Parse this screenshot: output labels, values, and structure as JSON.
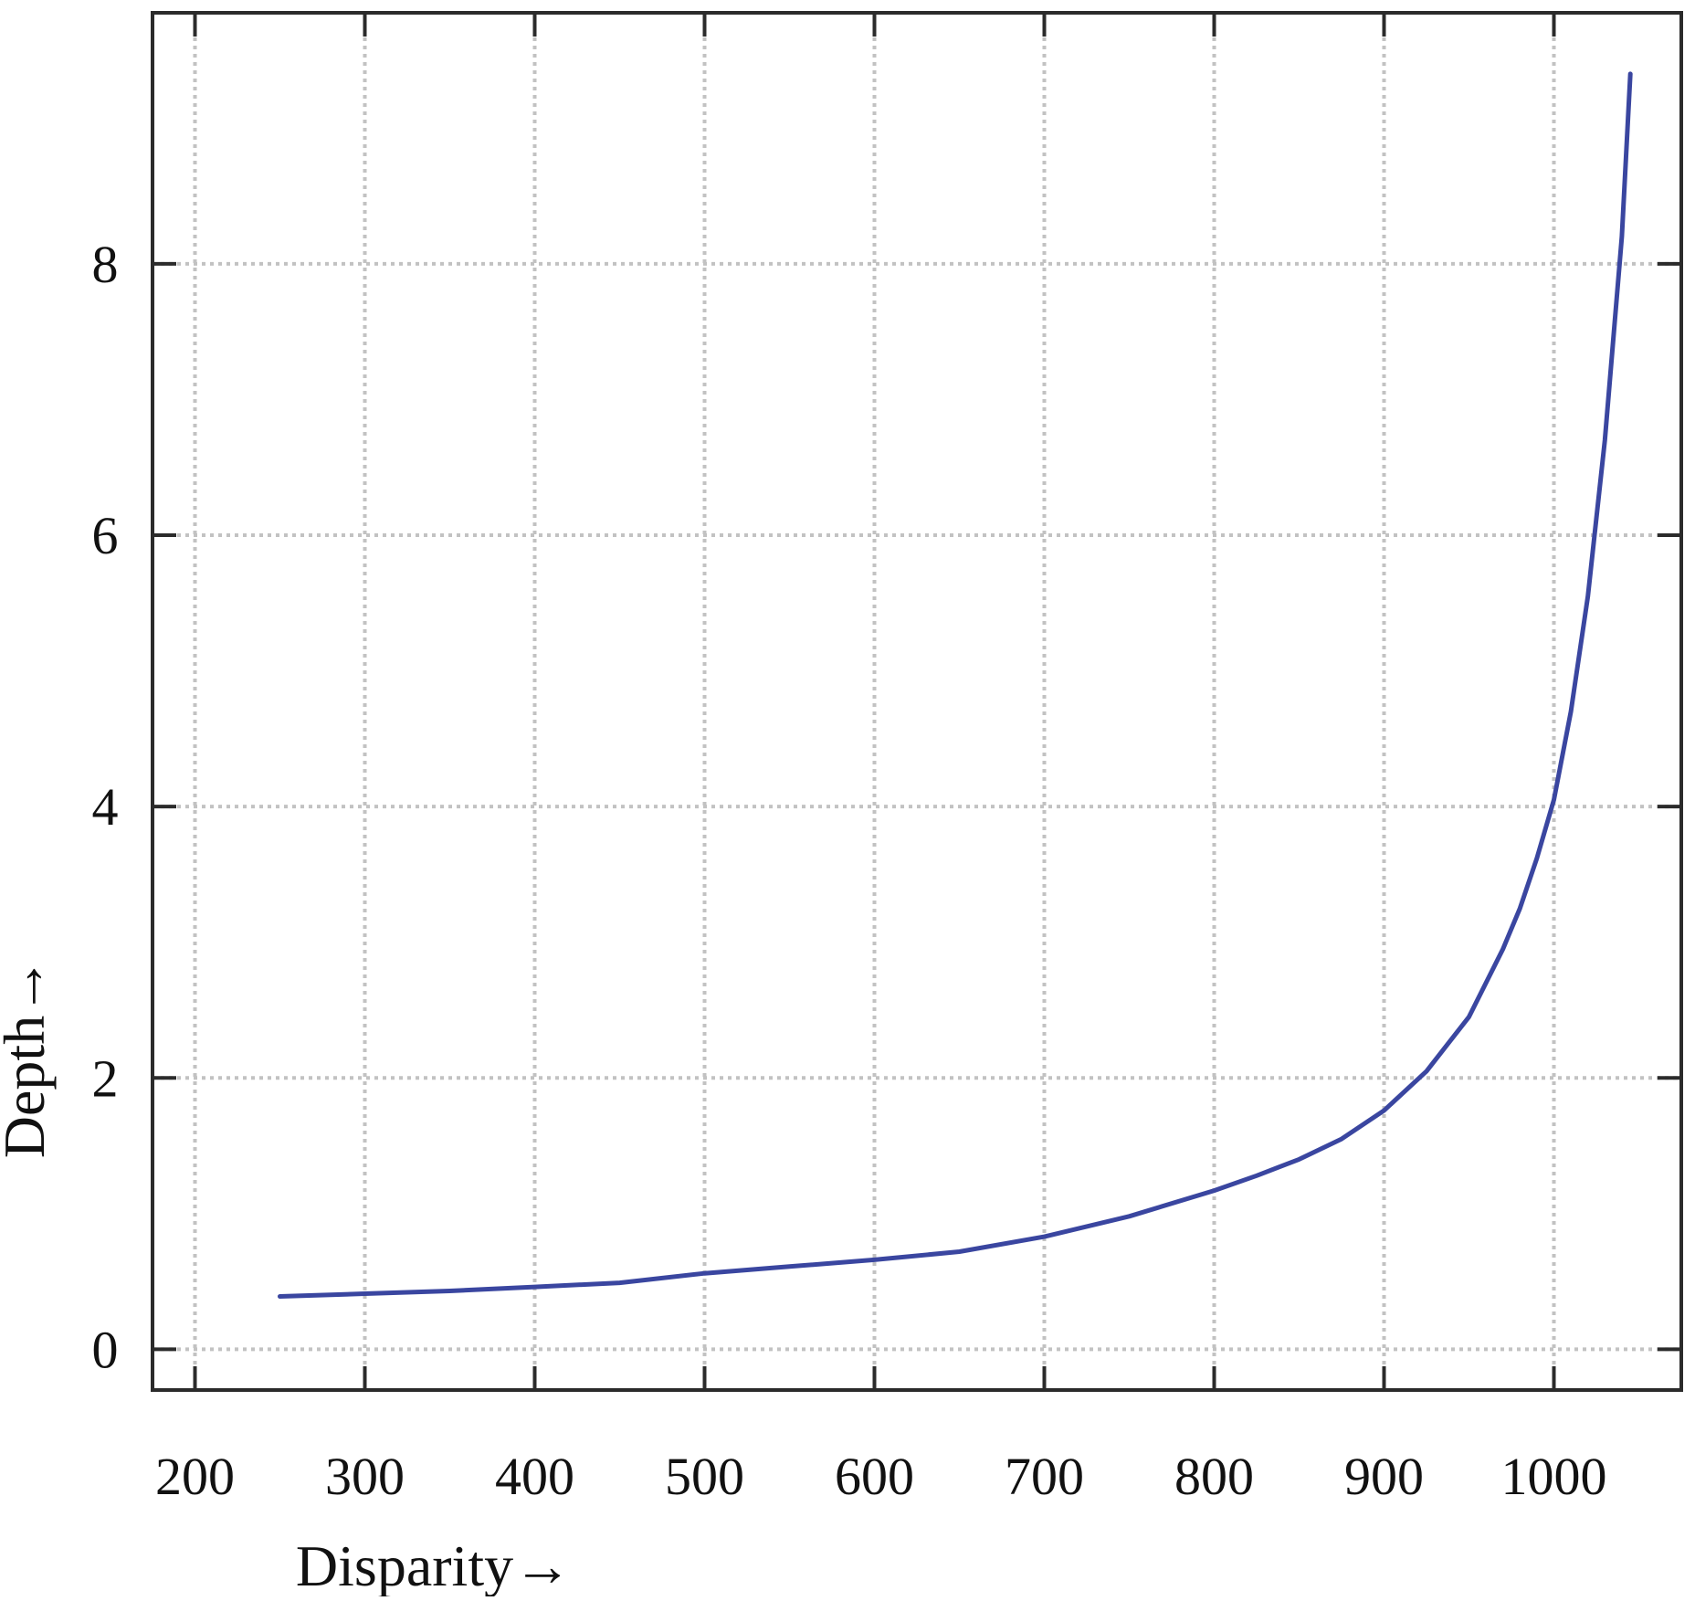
{
  "colors": {
    "line": "#3a46a0",
    "axis": "#2b2b2b",
    "grid": "#c2c2c2"
  },
  "chart_data": {
    "type": "line",
    "title": "",
    "xlabel": "Disparity→",
    "ylabel": "Depth→",
    "xlim": [
      175,
      1075
    ],
    "ylim": [
      -0.3,
      9.85
    ],
    "xticks": [
      200,
      300,
      400,
      500,
      600,
      700,
      800,
      900,
      1000
    ],
    "yticks": [
      0,
      2,
      4,
      6,
      8
    ],
    "grid": true,
    "legend": "none",
    "series": [
      {
        "x": [
          250,
          300,
          350,
          400,
          450,
          500,
          550,
          600,
          650,
          700,
          750,
          800,
          825,
          850,
          875,
          900,
          925,
          950,
          960,
          970,
          980,
          990,
          1000,
          1010,
          1020,
          1030,
          1040,
          1045
        ],
        "y": [
          0.39,
          0.41,
          0.43,
          0.46,
          0.49,
          0.56,
          0.61,
          0.66,
          0.72,
          0.83,
          0.98,
          1.17,
          1.28,
          1.4,
          1.55,
          1.76,
          2.05,
          2.45,
          2.7,
          2.95,
          3.25,
          3.62,
          4.05,
          4.7,
          5.55,
          6.7,
          8.2,
          9.4
        ]
      }
    ]
  }
}
